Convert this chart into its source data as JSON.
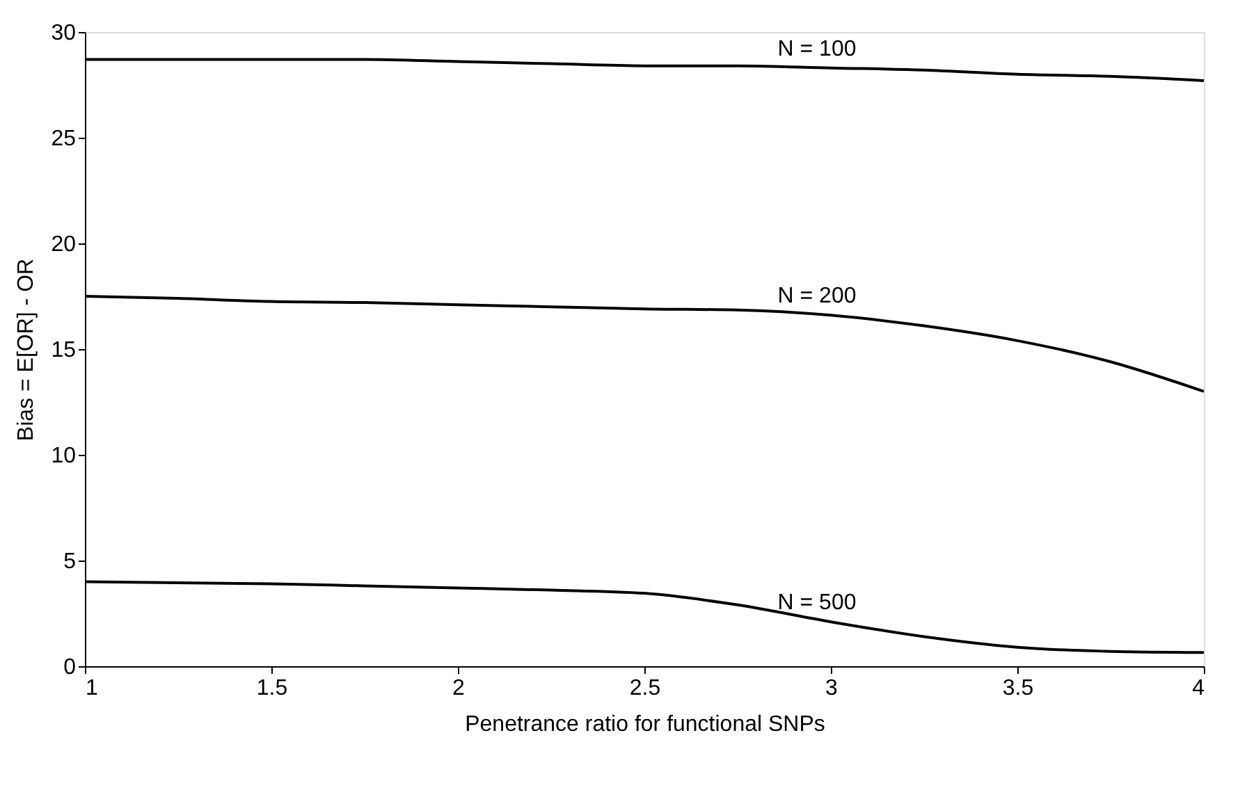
{
  "chart_data": {
    "type": "line",
    "xlabel": "Penetrance ratio for functional SNPs",
    "ylabel": "Bias = E[OR] - OR",
    "x": [
      1,
      1.25,
      1.5,
      1.75,
      2,
      2.25,
      2.5,
      2.75,
      3,
      3.25,
      3.5,
      3.75,
      4
    ],
    "series": [
      {
        "name": "N = 100",
        "color": "#000000",
        "values": [
          28.7,
          28.7,
          28.7,
          28.7,
          28.6,
          28.5,
          28.4,
          28.4,
          28.3,
          28.2,
          28.0,
          27.9,
          27.7
        ]
      },
      {
        "name": "N = 200",
        "color": "#000000",
        "values": [
          17.5,
          17.4,
          17.25,
          17.2,
          17.1,
          17.0,
          16.9,
          16.85,
          16.6,
          16.1,
          15.4,
          14.4,
          13.0
        ]
      },
      {
        "name": "N = 500",
        "color": "#000000",
        "values": [
          4.0,
          3.95,
          3.9,
          3.8,
          3.7,
          3.6,
          3.45,
          2.9,
          2.1,
          1.4,
          0.9,
          0.7,
          0.65
        ]
      }
    ],
    "xlim": [
      1,
      4
    ],
    "xticks": [
      1,
      1.5,
      2,
      2.5,
      3,
      3.5,
      4
    ],
    "ylim": [
      0,
      30
    ],
    "yticks": [
      0,
      5,
      10,
      15,
      20,
      25,
      30
    ],
    "grid": false,
    "marker": "none",
    "line_style": "solid"
  }
}
